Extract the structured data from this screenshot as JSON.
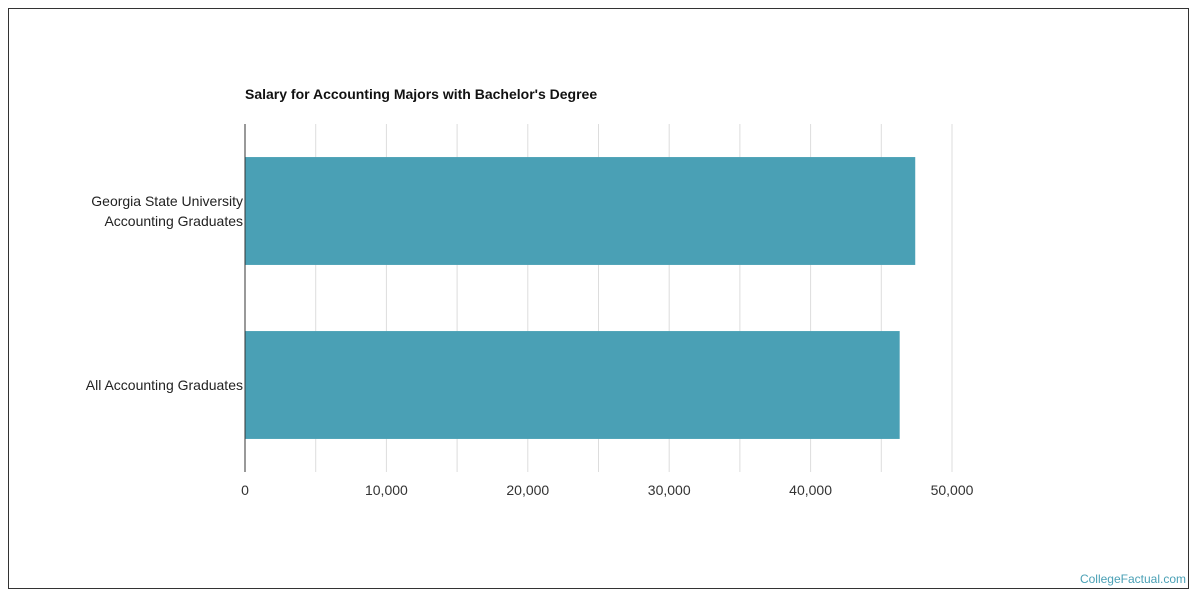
{
  "chart_data": {
    "type": "bar",
    "orientation": "horizontal",
    "title": "Salary for Accounting Majors with Bachelor's Degree",
    "categories": [
      [
        "Georgia State University",
        "Accounting Graduates"
      ],
      [
        "All Accounting Graduates"
      ]
    ],
    "values": [
      47400,
      46300
    ],
    "xlim": [
      0,
      50000
    ],
    "x_ticks": [
      0,
      10000,
      20000,
      30000,
      40000,
      50000
    ],
    "x_tick_labels": [
      "0",
      "10,000",
      "20,000",
      "30,000",
      "40,000",
      "50,000"
    ],
    "grid": true,
    "bar_color": "#4aa0b5"
  },
  "watermark": "CollegeFactual.com"
}
